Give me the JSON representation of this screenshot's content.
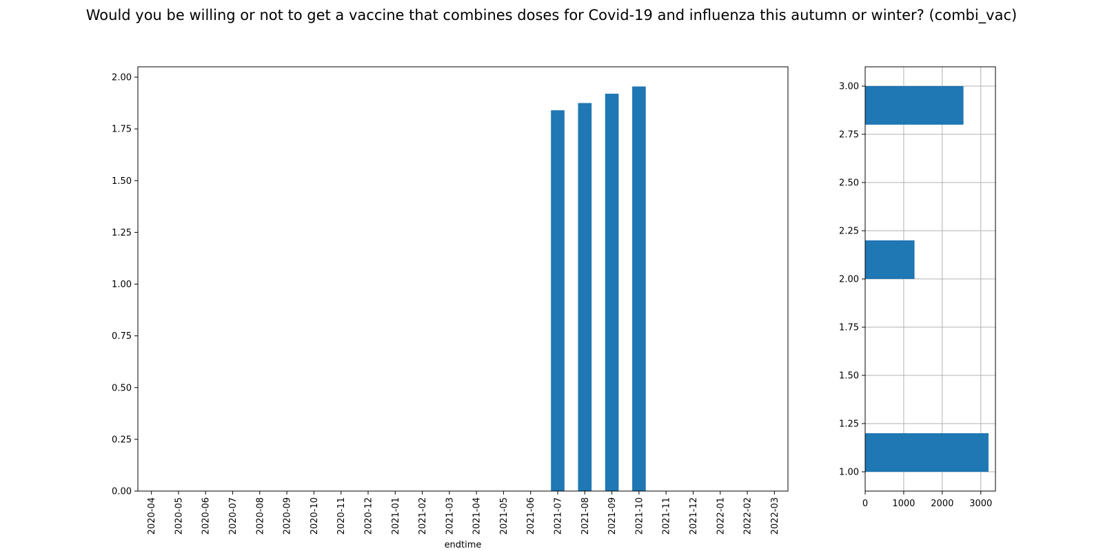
{
  "title": "Would you be willing or not to get a vaccine that combines doses for Covid-19 and influenza this autumn or winter? (combi_vac)",
  "colors": {
    "bar": "#1f77b4",
    "grid": "#b0b0b0",
    "axis": "#000000"
  },
  "chart_data": [
    {
      "type": "bar",
      "categories": [
        "2020-04",
        "2020-05",
        "2020-06",
        "2020-07",
        "2020-08",
        "2020-09",
        "2020-10",
        "2020-11",
        "2020-12",
        "2021-01",
        "2021-02",
        "2021-03",
        "2021-04",
        "2021-05",
        "2021-06",
        "2021-07",
        "2021-08",
        "2021-09",
        "2021-10",
        "2021-11",
        "2021-12",
        "2022-01",
        "2022-02",
        "2022-03"
      ],
      "values": [
        null,
        null,
        null,
        null,
        null,
        null,
        null,
        null,
        null,
        null,
        null,
        null,
        null,
        null,
        null,
        1.84,
        1.875,
        1.92,
        1.955,
        null,
        null,
        null,
        null,
        null
      ],
      "xlabel": "endtime",
      "ylabel": "",
      "ylim": [
        0,
        2.05
      ],
      "yticks": [
        "0.00",
        "0.25",
        "0.50",
        "0.75",
        "1.00",
        "1.25",
        "1.50",
        "1.75",
        "2.00"
      ],
      "grid": false
    },
    {
      "type": "bar",
      "orientation": "horizontal",
      "bins": [
        {
          "from": 1.0,
          "to": 1.2,
          "count": 3200
        },
        {
          "from": 2.0,
          "to": 2.2,
          "count": 1280
        },
        {
          "from": 2.8,
          "to": 3.0,
          "count": 2550
        }
      ],
      "xlim": [
        0,
        3380
      ],
      "ylim": [
        0.9,
        3.1
      ],
      "xticks": [
        "0",
        "1000",
        "2000",
        "3000"
      ],
      "yticks": [
        "1.00",
        "1.25",
        "1.50",
        "1.75",
        "2.00",
        "2.25",
        "2.50",
        "2.75",
        "3.00"
      ],
      "grid": true
    }
  ]
}
